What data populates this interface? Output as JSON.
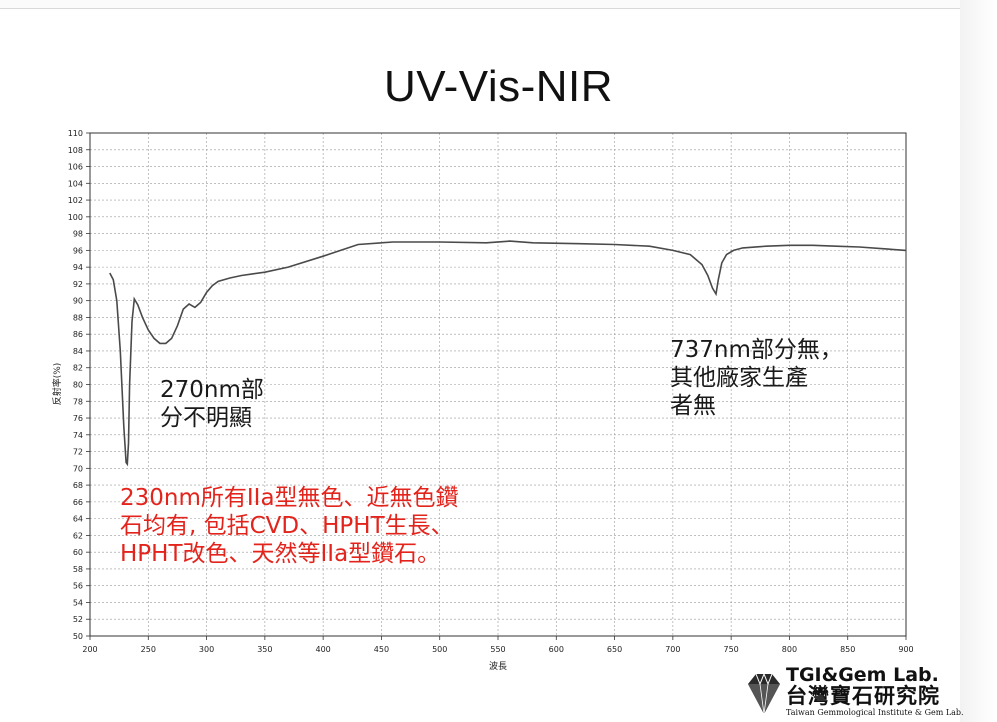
{
  "slide": {
    "title": "UV-Vis-NIR"
  },
  "notes": {
    "n270": [
      "270nm部",
      "分不明顯"
    ],
    "n737": [
      "737nm部分無，",
      "其他廠家生產",
      "者無"
    ],
    "n230": [
      "230nm所有IIa型無色、近無色鑽",
      "石均有, 包括CVD、HPHT生長、",
      "HPHT改色、天然等IIa型鑽石。"
    ]
  },
  "logo": {
    "line1": "TGI&Gem Lab.",
    "line2": "台灣寶石研究院",
    "line3": "Taiwan Gemmological Institute & Gem Lab.",
    "icon": "diamond-icon"
  },
  "colors": {
    "curve": "#4a4a4a",
    "note_red": "#e3241c",
    "grid": "#9a9a9a"
  },
  "chart_data": {
    "type": "line",
    "title": "UV-Vis-NIR",
    "xlabel": "波長",
    "ylabel": "反射率(%)",
    "xlim": [
      200,
      900
    ],
    "ylim": [
      50,
      110
    ],
    "xticks": [
      200,
      250,
      300,
      350,
      400,
      450,
      500,
      550,
      600,
      650,
      700,
      750,
      800,
      850,
      900
    ],
    "yticks": [
      50,
      52,
      54,
      56,
      58,
      60,
      62,
      64,
      66,
      68,
      70,
      72,
      74,
      76,
      78,
      80,
      82,
      84,
      86,
      88,
      90,
      92,
      94,
      96,
      98,
      100,
      102,
      104,
      106,
      108,
      110
    ],
    "grid": true,
    "series": [
      {
        "x": [
          217,
          220,
          223,
          226,
          229,
          231,
          232,
          233,
          234,
          236,
          238,
          241,
          245,
          250,
          255,
          260,
          265,
          270,
          275,
          280,
          285,
          290,
          295,
          300,
          305,
          310,
          320,
          330,
          340,
          350,
          370,
          400,
          430,
          460,
          500,
          540,
          560,
          580,
          620,
          650,
          680,
          700,
          715,
          725,
          730,
          734,
          737,
          739,
          742,
          746,
          752,
          760,
          780,
          800,
          820,
          840,
          860,
          880,
          900
        ],
        "y": [
          93.3,
          92.5,
          90.0,
          84.0,
          75.0,
          70.7,
          70.5,
          73.0,
          80.0,
          87.5,
          90.2,
          89.5,
          88.0,
          86.5,
          85.5,
          84.9,
          84.9,
          85.5,
          87.0,
          89.0,
          89.6,
          89.2,
          89.8,
          91.0,
          91.8,
          92.3,
          92.7,
          93.0,
          93.2,
          93.4,
          94.0,
          95.3,
          96.7,
          97.0,
          97.0,
          96.9,
          97.1,
          96.9,
          96.8,
          96.7,
          96.5,
          96.0,
          95.5,
          94.3,
          93.0,
          91.5,
          90.8,
          92.5,
          94.5,
          95.5,
          96.0,
          96.3,
          96.5,
          96.6,
          96.6,
          96.5,
          96.4,
          96.2,
          96.0
        ]
      }
    ]
  }
}
